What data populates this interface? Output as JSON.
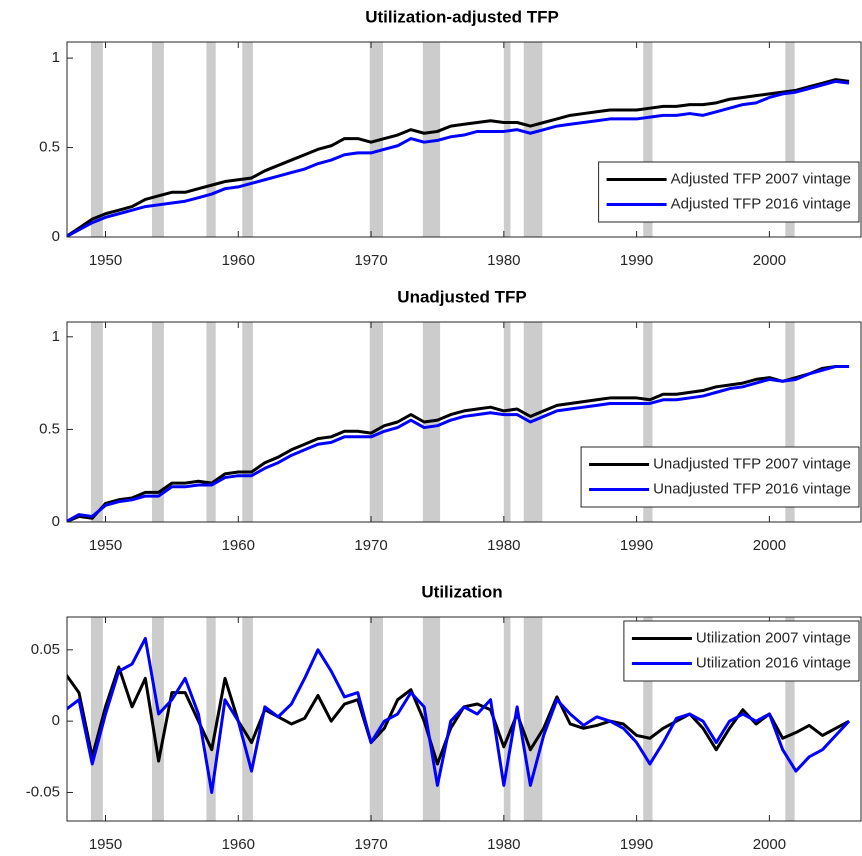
{
  "chart_data": [
    {
      "type": "line",
      "title": "Utilization-adjusted TFP",
      "legend": "lower right",
      "xlim": [
        1947.1,
        2006.9
      ],
      "ylim": [
        0,
        1.09
      ],
      "yticks": [
        0,
        0.5,
        1
      ],
      "xticks": [
        1950,
        1960,
        1970,
        1980,
        1990,
        2000
      ],
      "recessions": [
        [
          1948.9,
          1949.8
        ],
        [
          1953.5,
          1954.4
        ],
        [
          1957.6,
          1958.3
        ],
        [
          1960.3,
          1961.1
        ],
        [
          1969.9,
          1970.9
        ],
        [
          1973.9,
          1975.2
        ],
        [
          1980.0,
          1980.5
        ],
        [
          1981.5,
          1982.9
        ],
        [
          1990.5,
          1991.2
        ],
        [
          2001.2,
          2001.9
        ]
      ],
      "x": [
        1947,
        1948,
        1949,
        1950,
        1951,
        1952,
        1953,
        1954,
        1955,
        1956,
        1957,
        1958,
        1959,
        1960,
        1961,
        1962,
        1963,
        1964,
        1965,
        1966,
        1967,
        1968,
        1969,
        1970,
        1971,
        1972,
        1973,
        1974,
        1975,
        1976,
        1977,
        1978,
        1979,
        1980,
        1981,
        1982,
        1983,
        1984,
        1985,
        1986,
        1987,
        1988,
        1989,
        1990,
        1991,
        1992,
        1993,
        1994,
        1995,
        1996,
        1997,
        1998,
        1999,
        2000,
        2001,
        2002,
        2003,
        2004,
        2005,
        2006
      ],
      "series": [
        {
          "name": "Adjusted TFP 2007 vintage",
          "color": "#000000",
          "values": [
            0,
            0.05,
            0.1,
            0.13,
            0.15,
            0.17,
            0.21,
            0.23,
            0.25,
            0.25,
            0.27,
            0.29,
            0.31,
            0.32,
            0.33,
            0.37,
            0.4,
            0.43,
            0.46,
            0.49,
            0.51,
            0.55,
            0.55,
            0.53,
            0.55,
            0.57,
            0.6,
            0.58,
            0.59,
            0.62,
            0.63,
            0.64,
            0.65,
            0.64,
            0.64,
            0.62,
            0.64,
            0.66,
            0.68,
            0.69,
            0.7,
            0.71,
            0.71,
            0.71,
            0.72,
            0.73,
            0.73,
            0.74,
            0.74,
            0.75,
            0.77,
            0.78,
            0.79,
            0.8,
            0.81,
            0.82,
            0.84,
            0.86,
            0.88,
            0.87
          ]
        },
        {
          "name": "Adjusted TFP 2016 vintage",
          "color": "#0000ff",
          "values": [
            0,
            0.04,
            0.08,
            0.11,
            0.13,
            0.15,
            0.17,
            0.18,
            0.19,
            0.2,
            0.22,
            0.24,
            0.27,
            0.28,
            0.3,
            0.32,
            0.34,
            0.36,
            0.38,
            0.41,
            0.43,
            0.46,
            0.47,
            0.47,
            0.49,
            0.51,
            0.55,
            0.53,
            0.54,
            0.56,
            0.57,
            0.59,
            0.59,
            0.59,
            0.6,
            0.58,
            0.6,
            0.62,
            0.63,
            0.64,
            0.65,
            0.66,
            0.66,
            0.66,
            0.67,
            0.68,
            0.68,
            0.69,
            0.68,
            0.7,
            0.72,
            0.74,
            0.75,
            0.78,
            0.8,
            0.81,
            0.83,
            0.85,
            0.87,
            0.86
          ]
        }
      ]
    },
    {
      "type": "line",
      "title": "Unadjusted TFP",
      "legend": "lower right",
      "xlim": [
        1947.1,
        2006.9
      ],
      "ylim": [
        0,
        1.08
      ],
      "yticks": [
        0,
        0.5,
        1
      ],
      "xticks": [
        1950,
        1960,
        1970,
        1980,
        1990,
        2000
      ],
      "recessions": [
        [
          1948.9,
          1949.8
        ],
        [
          1953.5,
          1954.4
        ],
        [
          1957.6,
          1958.3
        ],
        [
          1960.3,
          1961.1
        ],
        [
          1969.9,
          1970.9
        ],
        [
          1973.9,
          1975.2
        ],
        [
          1980.0,
          1980.5
        ],
        [
          1981.5,
          1982.9
        ],
        [
          1990.5,
          1991.2
        ],
        [
          2001.2,
          2001.9
        ]
      ],
      "x": [
        1947,
        1948,
        1949,
        1950,
        1951,
        1952,
        1953,
        1954,
        1955,
        1956,
        1957,
        1958,
        1959,
        1960,
        1961,
        1962,
        1963,
        1964,
        1965,
        1966,
        1967,
        1968,
        1969,
        1970,
        1971,
        1972,
        1973,
        1974,
        1975,
        1976,
        1977,
        1978,
        1979,
        1980,
        1981,
        1982,
        1983,
        1984,
        1985,
        1986,
        1987,
        1988,
        1989,
        1990,
        1991,
        1992,
        1993,
        1994,
        1995,
        1996,
        1997,
        1998,
        1999,
        2000,
        2001,
        2002,
        2003,
        2004,
        2005,
        2006
      ],
      "series": [
        {
          "name": "Unadjusted TFP 2007 vintage",
          "color": "#000000",
          "values": [
            0,
            0.03,
            0.02,
            0.1,
            0.12,
            0.13,
            0.16,
            0.16,
            0.21,
            0.21,
            0.22,
            0.21,
            0.26,
            0.27,
            0.27,
            0.32,
            0.35,
            0.39,
            0.42,
            0.45,
            0.46,
            0.49,
            0.49,
            0.48,
            0.52,
            0.54,
            0.58,
            0.54,
            0.55,
            0.58,
            0.6,
            0.61,
            0.62,
            0.6,
            0.61,
            0.57,
            0.6,
            0.63,
            0.64,
            0.65,
            0.66,
            0.67,
            0.67,
            0.67,
            0.66,
            0.69,
            0.69,
            0.7,
            0.71,
            0.73,
            0.74,
            0.75,
            0.77,
            0.78,
            0.76,
            0.78,
            0.8,
            0.83,
            0.84,
            0.84
          ]
        },
        {
          "name": "Unadjusted TFP 2016 vintage",
          "color": "#0000ff",
          "values": [
            0,
            0.04,
            0.03,
            0.09,
            0.11,
            0.12,
            0.14,
            0.14,
            0.19,
            0.19,
            0.2,
            0.2,
            0.24,
            0.25,
            0.25,
            0.29,
            0.32,
            0.36,
            0.39,
            0.42,
            0.43,
            0.46,
            0.46,
            0.46,
            0.49,
            0.51,
            0.55,
            0.51,
            0.52,
            0.55,
            0.57,
            0.58,
            0.59,
            0.58,
            0.58,
            0.54,
            0.57,
            0.6,
            0.61,
            0.62,
            0.63,
            0.64,
            0.64,
            0.64,
            0.64,
            0.66,
            0.66,
            0.67,
            0.68,
            0.7,
            0.72,
            0.73,
            0.75,
            0.77,
            0.76,
            0.77,
            0.8,
            0.82,
            0.84,
            0.84
          ]
        }
      ]
    },
    {
      "type": "line",
      "title": "Utilization",
      "legend": "upper right",
      "xlim": [
        1947.1,
        2006.9
      ],
      "ylim": [
        -0.07,
        0.073
      ],
      "yticks": [
        -0.05,
        0,
        0.05
      ],
      "xticks": [
        1950,
        1960,
        1970,
        1980,
        1990,
        2000
      ],
      "recessions": [
        [
          1948.9,
          1949.8
        ],
        [
          1953.5,
          1954.4
        ],
        [
          1957.6,
          1958.3
        ],
        [
          1960.3,
          1961.1
        ],
        [
          1969.9,
          1970.9
        ],
        [
          1973.9,
          1975.2
        ],
        [
          1980.0,
          1980.5
        ],
        [
          1981.5,
          1982.9
        ],
        [
          1990.5,
          1991.2
        ],
        [
          2001.2,
          2001.9
        ]
      ],
      "x": [
        1947,
        1948,
        1949,
        1950,
        1951,
        1952,
        1953,
        1954,
        1955,
        1956,
        1957,
        1958,
        1959,
        1960,
        1961,
        1962,
        1963,
        1964,
        1965,
        1966,
        1967,
        1968,
        1969,
        1970,
        1971,
        1972,
        1973,
        1974,
        1975,
        1976,
        1977,
        1978,
        1979,
        1980,
        1981,
        1982,
        1983,
        1984,
        1985,
        1986,
        1987,
        1988,
        1989,
        1990,
        1991,
        1992,
        1993,
        1994,
        1995,
        1996,
        1997,
        1998,
        1999,
        2000,
        2001,
        2002,
        2003,
        2004,
        2005,
        2006
      ],
      "series": [
        {
          "name": "Utilization 2007 vintage",
          "color": "#000000",
          "values": [
            0.033,
            0.02,
            -0.025,
            0.01,
            0.038,
            0.01,
            0.03,
            -0.028,
            0.02,
            0.02,
            0,
            -0.02,
            0.03,
            0,
            -0.015,
            0.008,
            0.003,
            -0.002,
            0.002,
            0.018,
            0,
            0.012,
            0.015,
            -0.015,
            -0.005,
            0.015,
            0.022,
            0,
            -0.03,
            -0.005,
            0.01,
            0.012,
            0.008,
            -0.018,
            0.005,
            -0.02,
            -0.005,
            0.017,
            -0.002,
            -0.005,
            -0.003,
            0,
            -0.002,
            -0.01,
            -0.012,
            -0.005,
            0,
            0.005,
            -0.005,
            -0.02,
            -0.005,
            0.008,
            -0.002,
            0.005,
            -0.012,
            -0.008,
            -0.003,
            -0.01,
            -0.005,
            0
          ]
        },
        {
          "name": "Utilization 2016 vintage",
          "color": "#0000ff",
          "values": [
            0.008,
            0.015,
            -0.03,
            0.005,
            0.035,
            0.04,
            0.058,
            0.005,
            0.015,
            0.03,
            0.005,
            -0.05,
            0.015,
            0,
            -0.035,
            0.01,
            0.003,
            0.012,
            0.03,
            0.05,
            0.035,
            0.017,
            0.02,
            -0.015,
            0,
            0.005,
            0.02,
            0.01,
            -0.045,
            0,
            0.01,
            0.005,
            0.015,
            -0.045,
            0.01,
            -0.045,
            -0.01,
            0.015,
            0.005,
            -0.003,
            0.003,
            0,
            -0.005,
            -0.015,
            -0.03,
            -0.015,
            0.002,
            0.005,
            0,
            -0.015,
            0,
            0.005,
            0,
            0.005,
            -0.02,
            -0.035,
            -0.025,
            -0.02,
            -0.01,
            0
          ]
        }
      ]
    }
  ]
}
